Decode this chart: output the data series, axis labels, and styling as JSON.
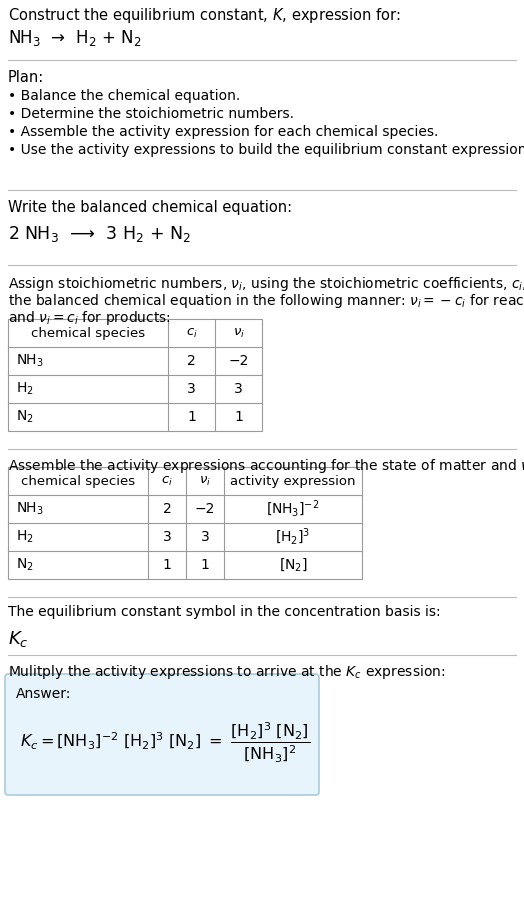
{
  "bg_color": "#ffffff",
  "text_color": "#000000",
  "title_line1": "Construct the equilibrium constant, $K$, expression for:",
  "title_line2": "NH$_3$  →  H$_2$ + N$_2$",
  "plan_header": "Plan:",
  "plan_items": [
    "• Balance the chemical equation.",
    "• Determine the stoichiometric numbers.",
    "• Assemble the activity expression for each chemical species.",
    "• Use the activity expressions to build the equilibrium constant expression."
  ],
  "balanced_header": "Write the balanced chemical equation:",
  "balanced_eq": "2 NH$_3$  ⟶  3 H$_2$ + N$_2$",
  "assign_text1": "Assign stoichiometric numbers, $\\nu_i$, using the stoichiometric coefficients, $c_i$, from",
  "assign_text2": "the balanced chemical equation in the following manner: $\\nu_i = -c_i$ for reactants",
  "assign_text3": "and $\\nu_i = c_i$ for products:",
  "table1_headers": [
    "chemical species",
    "$c_i$",
    "$\\nu_i$"
  ],
  "table1_rows": [
    [
      "NH$_3$",
      "2",
      "−2"
    ],
    [
      "H$_2$",
      "3",
      "3"
    ],
    [
      "N$_2$",
      "1",
      "1"
    ]
  ],
  "assemble_text": "Assemble the activity expressions accounting for the state of matter and $\\nu_i$:",
  "table2_headers": [
    "chemical species",
    "$c_i$",
    "$\\nu_i$",
    "activity expression"
  ],
  "table2_rows": [
    [
      "NH$_3$",
      "2",
      "−2",
      "[NH$_3$]$^{-2}$"
    ],
    [
      "H$_2$",
      "3",
      "3",
      "[H$_2$]$^3$"
    ],
    [
      "N$_2$",
      "1",
      "1",
      "[N$_2$]"
    ]
  ],
  "kc_text1": "The equilibrium constant symbol in the concentration basis is:",
  "kc_symbol": "$K_c$",
  "multiply_text": "Mulitply the activity expressions to arrive at the $K_c$ expression:",
  "answer_label": "Answer:",
  "separator_color": "#bbbbbb",
  "table_line_color": "#999999",
  "answer_box_bg": "#e8f4fb",
  "answer_box_edge": "#aaccdd"
}
